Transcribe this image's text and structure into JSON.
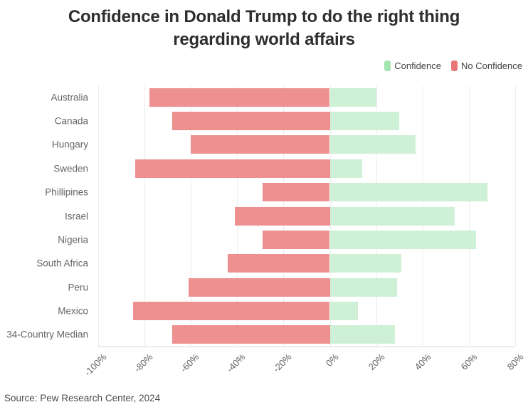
{
  "title": "Confidence in Donald Trump to do the right thing regarding world affairs",
  "source": "Source: Pew Research Center, 2024",
  "legend": [
    {
      "label": "Confidence",
      "color": "#a2e5ae"
    },
    {
      "label": "No Confidence",
      "color": "#e97676"
    }
  ],
  "colors": {
    "confidence_bar": "#cdf0d6",
    "no_confidence_bar": "#ee9090",
    "gridline": "#ededed",
    "axis_line": "#d9d9d9"
  },
  "chart_data": {
    "type": "bar",
    "orientation": "horizontal",
    "diverging": true,
    "title": "Confidence in Donald Trump to do the right thing regarding world affairs",
    "categories": [
      "Australia",
      "Canada",
      "Hungary",
      "Sweden",
      "Phillipines",
      "Israel",
      "Nigeria",
      "South Africa",
      "Peru",
      "Mexico",
      "34-Country Median"
    ],
    "series": [
      {
        "name": "Confidence",
        "direction": "right",
        "color": "#cdf0d6",
        "values": [
          20,
          30,
          37,
          14,
          68,
          54,
          63,
          31,
          29,
          12,
          28
        ]
      },
      {
        "name": "No Confidence",
        "direction": "left",
        "color": "#ee9090",
        "values": [
          78,
          68,
          60,
          84,
          29,
          41,
          29,
          44,
          61,
          85,
          68
        ]
      }
    ],
    "value_unit": "%",
    "xlim": [
      -100,
      80
    ],
    "xtick_values": [
      -100,
      -80,
      -60,
      -40,
      -20,
      0,
      20,
      40,
      60,
      80
    ],
    "xtick_labels": [
      "-100%",
      "-80%",
      "-60%",
      "-40%",
      "-20%",
      "0%",
      "20%",
      "40%",
      "60%",
      "80%"
    ],
    "grid": "vertical",
    "legend_position": "top-right",
    "source": "Source: Pew Research Center, 2024"
  }
}
